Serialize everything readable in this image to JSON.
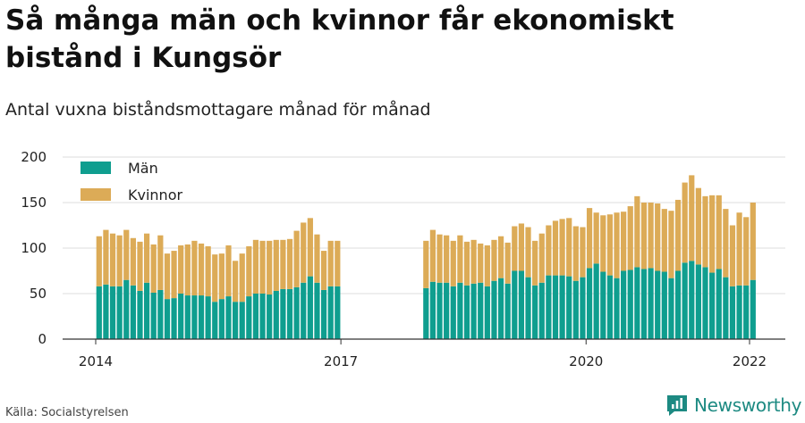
{
  "title": "Så många män och kvinnor får ekonomiskt bistånd i Kungsör",
  "subtitle": "Antal vuxna biståndsmottagare månad för månad",
  "source": "Källa: Socialstyrelsen",
  "brand": {
    "name": "Newsworthy",
    "icon": "newsworthy-logo-icon"
  },
  "colors": {
    "man": "#0f9e8f",
    "kvinnor": "#dcab57",
    "grid": "#dcdcdc",
    "axis": "#333333"
  },
  "chart_data": {
    "type": "bar",
    "stacked": true,
    "legend_position": "top-left",
    "grid": true,
    "y_ticks": [
      0,
      50,
      100,
      150,
      200
    ],
    "ylim": [
      0,
      200
    ],
    "x_ticks": [
      "2014",
      "2017",
      "2020",
      "2022"
    ],
    "x": [
      "2014-01",
      "2014-02",
      "2014-03",
      "2014-04",
      "2014-05",
      "2014-06",
      "2014-07",
      "2014-08",
      "2014-09",
      "2014-10",
      "2014-11",
      "2014-12",
      "2015-01",
      "2015-02",
      "2015-03",
      "2015-04",
      "2015-05",
      "2015-06",
      "2015-07",
      "2015-08",
      "2015-09",
      "2015-10",
      "2015-11",
      "2015-12",
      "2016-01",
      "2016-02",
      "2016-03",
      "2016-04",
      "2016-05",
      "2016-06",
      "2016-07",
      "2016-08",
      "2016-09",
      "2016-10",
      "2016-11",
      "2016-12",
      "2018-01",
      "2018-02",
      "2018-03",
      "2018-04",
      "2018-05",
      "2018-06",
      "2018-07",
      "2018-08",
      "2018-09",
      "2018-10",
      "2018-11",
      "2018-12",
      "2019-01",
      "2019-02",
      "2019-03",
      "2019-04",
      "2019-05",
      "2019-06",
      "2019-07",
      "2019-08",
      "2019-09",
      "2019-10",
      "2019-11",
      "2019-12",
      "2020-01",
      "2020-02",
      "2020-03",
      "2020-04",
      "2020-05",
      "2020-06",
      "2020-07",
      "2020-08",
      "2020-09",
      "2020-10",
      "2020-11",
      "2020-12",
      "2021-01",
      "2021-02",
      "2021-03",
      "2021-04",
      "2021-05",
      "2021-06",
      "2021-07",
      "2021-08",
      "2021-09",
      "2021-10",
      "2021-11",
      "2021-12",
      "2022-01"
    ],
    "series": [
      {
        "name": "Män",
        "values": [
          58,
          60,
          58,
          58,
          65,
          59,
          53,
          62,
          51,
          54,
          44,
          45,
          50,
          48,
          48,
          48,
          47,
          41,
          44,
          47,
          41,
          41,
          47,
          50,
          50,
          49,
          53,
          55,
          55,
          57,
          62,
          69,
          62,
          54,
          58,
          58,
          56,
          63,
          62,
          62,
          58,
          62,
          59,
          61,
          62,
          58,
          64,
          67,
          61,
          75,
          75,
          68,
          59,
          62,
          70,
          70,
          70,
          69,
          64,
          68,
          78,
          83,
          74,
          70,
          67,
          75,
          76,
          79,
          77,
          78,
          75,
          74,
          67,
          75,
          84,
          86,
          82,
          79,
          73,
          77,
          68,
          58,
          59,
          59,
          65
        ]
      },
      {
        "name": "Kvinnor",
        "values": [
          55,
          60,
          58,
          56,
          55,
          52,
          54,
          54,
          53,
          60,
          50,
          52,
          53,
          56,
          60,
          57,
          55,
          52,
          50,
          56,
          45,
          53,
          55,
          59,
          58,
          59,
          56,
          54,
          55,
          62,
          66,
          64,
          53,
          43,
          50,
          50,
          52,
          57,
          53,
          52,
          50,
          52,
          48,
          48,
          43,
          45,
          45,
          46,
          45,
          49,
          52,
          55,
          49,
          54,
          55,
          60,
          62,
          64,
          60,
          55,
          66,
          56,
          62,
          67,
          72,
          65,
          70,
          78,
          73,
          72,
          74,
          69,
          74,
          78,
          88,
          94,
          84,
          78,
          85,
          81,
          75,
          67,
          80,
          75,
          85
        ]
      }
    ]
  }
}
